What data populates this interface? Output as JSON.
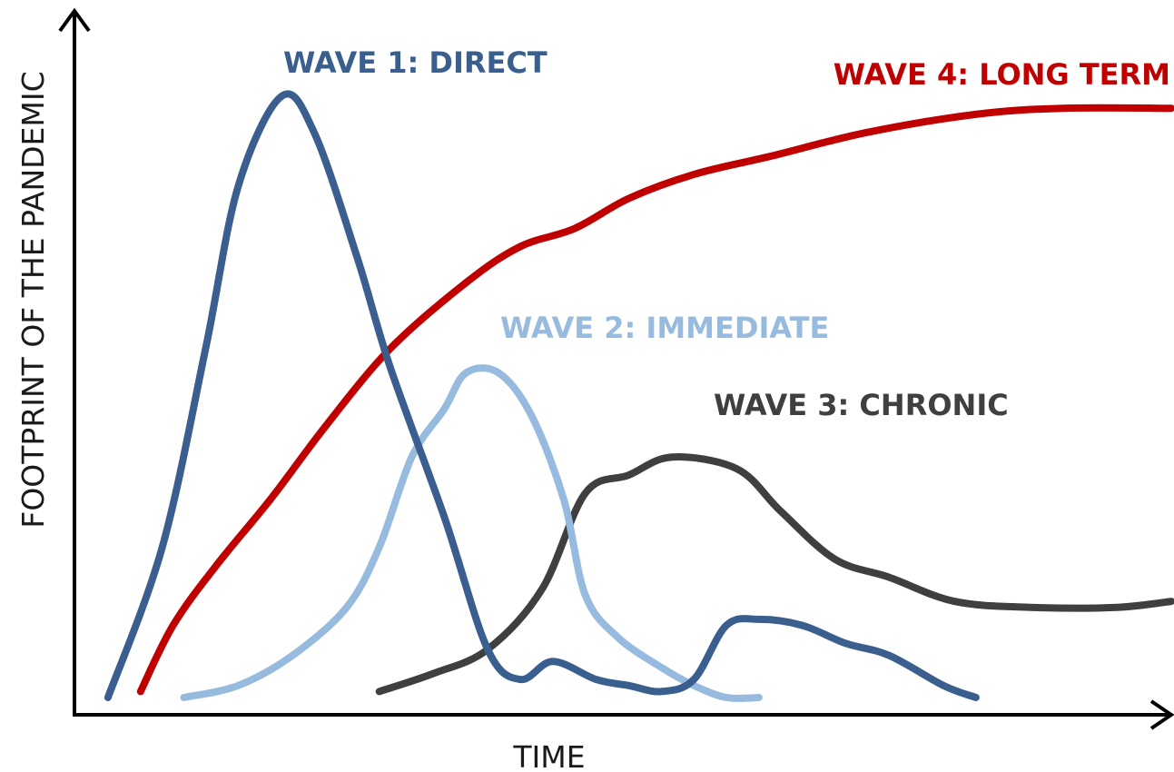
{
  "chart_data": {
    "type": "line",
    "title": "",
    "xlabel": "TIME",
    "ylabel": "FOOTPRINT OF THE PANDEMIC",
    "xlim": [
      0,
      100
    ],
    "ylim": [
      0,
      100
    ],
    "grid": false,
    "legend": "none",
    "series": [
      {
        "name": "WAVE 1: DIRECT",
        "color": "#3a5f8f",
        "points": [
          [
            2,
            0
          ],
          [
            7,
            25
          ],
          [
            11,
            58
          ],
          [
            14,
            85
          ],
          [
            18,
            100
          ],
          [
            21,
            94
          ],
          [
            25,
            73
          ],
          [
            28,
            55
          ],
          [
            33,
            30
          ],
          [
            37,
            8
          ],
          [
            40,
            3
          ],
          [
            43,
            6
          ],
          [
            47,
            3
          ],
          [
            50,
            2
          ],
          [
            53,
            1
          ],
          [
            56,
            3
          ],
          [
            59,
            12
          ],
          [
            62,
            13
          ],
          [
            66,
            12
          ],
          [
            70,
            9
          ],
          [
            74,
            7
          ],
          [
            79,
            2
          ],
          [
            82,
            0
          ]
        ]
      },
      {
        "name": "WAVE 2: IMMEDIATE",
        "color": "#97badf",
        "points": [
          [
            9,
            0
          ],
          [
            14,
            2
          ],
          [
            19,
            7
          ],
          [
            24,
            15
          ],
          [
            27,
            25
          ],
          [
            30,
            40
          ],
          [
            33,
            48
          ],
          [
            35,
            54
          ],
          [
            38,
            54
          ],
          [
            41,
            47
          ],
          [
            44,
            33
          ],
          [
            46,
            17
          ],
          [
            49,
            10
          ],
          [
            53,
            5
          ],
          [
            56,
            2
          ],
          [
            59,
            0
          ],
          [
            62,
            0
          ]
        ]
      },
      {
        "name": "WAVE 3: CHRONIC",
        "color": "#3f3f3f",
        "points": [
          [
            27,
            1
          ],
          [
            32,
            4
          ],
          [
            37,
            8
          ],
          [
            42,
            18
          ],
          [
            46,
            34
          ],
          [
            50,
            37
          ],
          [
            54,
            40
          ],
          [
            60,
            38
          ],
          [
            64,
            31
          ],
          [
            69,
            23
          ],
          [
            74,
            20
          ],
          [
            80,
            16
          ],
          [
            87,
            15
          ],
          [
            95,
            15
          ],
          [
            100,
            16
          ]
        ]
      },
      {
        "name": "WAVE 4: LONG TERM",
        "color": "#c00000",
        "points": [
          [
            5,
            1
          ],
          [
            8,
            12
          ],
          [
            12,
            22
          ],
          [
            17,
            33
          ],
          [
            22,
            45
          ],
          [
            28,
            58
          ],
          [
            35,
            69
          ],
          [
            40,
            75
          ],
          [
            45,
            78
          ],
          [
            50,
            83
          ],
          [
            56,
            87
          ],
          [
            63,
            90
          ],
          [
            72,
            94
          ],
          [
            82,
            97
          ],
          [
            90,
            98
          ],
          [
            100,
            98
          ]
        ]
      }
    ]
  }
}
